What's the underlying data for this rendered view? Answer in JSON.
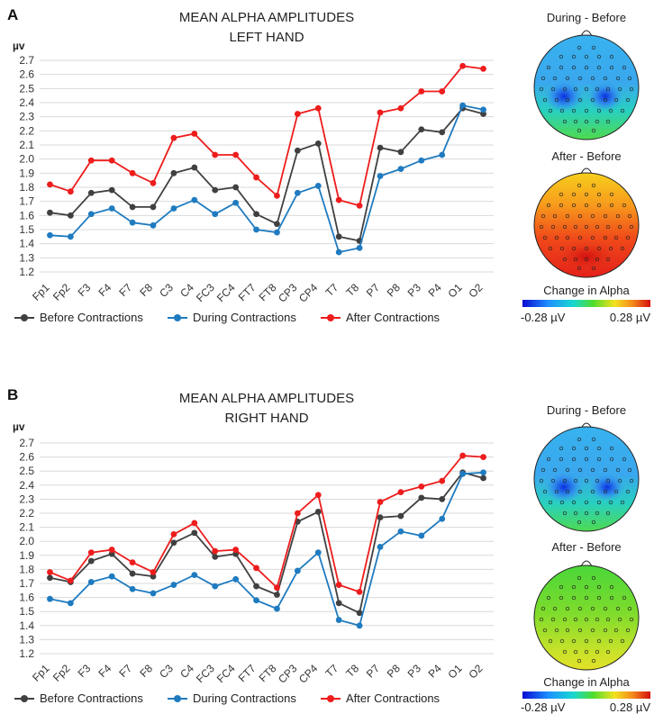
{
  "colors": {
    "before": "#404040",
    "during": "#1f7bc0",
    "after": "#ee1c1c",
    "grid": "#d9d9d9",
    "text": "#333333"
  },
  "panels": [
    {
      "label": "A",
      "topo_during_title": "During - Before",
      "topo_after_title": "After - Before",
      "colorbar_title": "Change in Alpha",
      "colorbar_min": "-0.28 µV",
      "colorbar_max": "0.28 µV"
    },
    {
      "label": "B",
      "topo_during_title": "During - Before",
      "topo_after_title": "After - Before",
      "colorbar_title": "Change in Alpha",
      "colorbar_min": "-0.28 µV",
      "colorbar_max": "0.28 µV"
    }
  ],
  "chart_data": [
    {
      "type": "line",
      "title": "MEAN ALPHA AMPLITUDES",
      "subtitle": "LEFT HAND",
      "ylabel": "µv",
      "ylim": [
        1.2,
        2.7
      ],
      "yticks": [
        "1.2",
        "1.3",
        "1.4",
        "1.5",
        "1.6",
        "1.7",
        "1.8",
        "1.9",
        "2.0",
        "2.1",
        "2.2",
        "2.3",
        "2.4",
        "2.5",
        "2.6",
        "2.7"
      ],
      "grid": true,
      "legend": "bottom",
      "categories": [
        "Fp1",
        "Fp2",
        "F3",
        "F4",
        "F7",
        "F8",
        "C3",
        "C4",
        "FC3",
        "FC4",
        "FT7",
        "FT8",
        "CP3",
        "CP4",
        "T7",
        "T8",
        "P7",
        "P8",
        "P3",
        "P4",
        "O1",
        "O2"
      ],
      "series": [
        {
          "name": "Before Contractions",
          "key": "before",
          "values": [
            1.62,
            1.6,
            1.76,
            1.78,
            1.66,
            1.66,
            1.9,
            1.94,
            1.78,
            1.8,
            1.61,
            1.54,
            2.06,
            2.11,
            1.45,
            1.42,
            2.08,
            2.05,
            2.21,
            2.19,
            2.36,
            2.32
          ]
        },
        {
          "name": "During Contractions",
          "key": "during",
          "values": [
            1.46,
            1.45,
            1.61,
            1.65,
            1.55,
            1.53,
            1.65,
            1.71,
            1.61,
            1.69,
            1.5,
            1.48,
            1.76,
            1.81,
            1.34,
            1.37,
            1.88,
            1.93,
            1.99,
            2.03,
            2.38,
            2.35
          ]
        },
        {
          "name": "After Contractions",
          "key": "after",
          "values": [
            1.82,
            1.77,
            1.99,
            1.99,
            1.9,
            1.83,
            2.15,
            2.18,
            2.03,
            2.03,
            1.87,
            1.74,
            2.32,
            2.36,
            1.71,
            1.67,
            2.33,
            2.36,
            2.48,
            2.48,
            2.66,
            2.64
          ]
        }
      ]
    },
    {
      "type": "line",
      "title": "MEAN ALPHA AMPLITUDES",
      "subtitle": "RIGHT HAND",
      "ylabel": "µv",
      "ylim": [
        1.2,
        2.7
      ],
      "yticks": [
        "1.2",
        "1.3",
        "1.4",
        "1.5",
        "1.6",
        "1.7",
        "1.8",
        "1.9",
        "2.0",
        "2.1",
        "2.2",
        "2.3",
        "2.4",
        "2.5",
        "2.6",
        "2.7"
      ],
      "grid": true,
      "legend": "bottom",
      "categories": [
        "Fp1",
        "Fp2",
        "F3",
        "F4",
        "F7",
        "F8",
        "C3",
        "C4",
        "FC3",
        "FC4",
        "FT7",
        "FT8",
        "CP3",
        "CP4",
        "T7",
        "T8",
        "P7",
        "P8",
        "P3",
        "P4",
        "O1",
        "O2"
      ],
      "series": [
        {
          "name": "Before Contractions",
          "key": "before",
          "values": [
            1.74,
            1.71,
            1.86,
            1.91,
            1.77,
            1.75,
            1.99,
            2.06,
            1.89,
            1.91,
            1.68,
            1.62,
            2.14,
            2.21,
            1.56,
            1.49,
            2.17,
            2.18,
            2.31,
            2.3,
            2.49,
            2.45
          ]
        },
        {
          "name": "During Contractions",
          "key": "during",
          "values": [
            1.59,
            1.56,
            1.71,
            1.75,
            1.66,
            1.63,
            1.69,
            1.76,
            1.68,
            1.73,
            1.58,
            1.52,
            1.79,
            1.92,
            1.44,
            1.4,
            1.96,
            2.07,
            2.04,
            2.16,
            2.48,
            2.49
          ]
        },
        {
          "name": "After Contractions",
          "key": "after",
          "values": [
            1.78,
            1.72,
            1.92,
            1.94,
            1.85,
            1.78,
            2.05,
            2.13,
            1.93,
            1.94,
            1.81,
            1.67,
            2.2,
            2.33,
            1.69,
            1.64,
            2.28,
            2.35,
            2.39,
            2.43,
            2.61,
            2.6
          ]
        }
      ]
    }
  ]
}
